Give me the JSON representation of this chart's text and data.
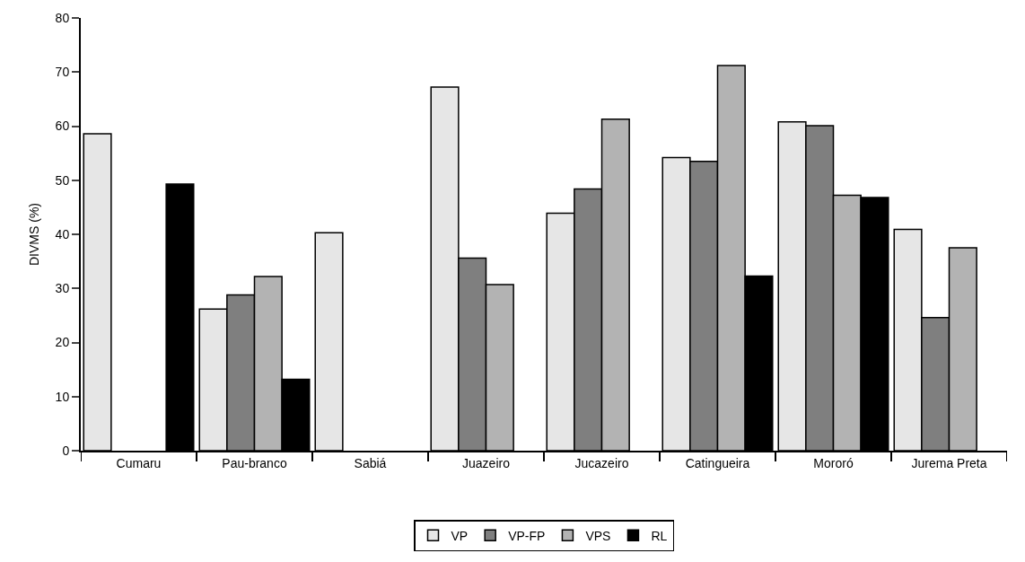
{
  "chart_data": {
    "type": "bar",
    "ylabel": "DIVMS (%)",
    "categories": [
      "Cumaru",
      "Pau-branco",
      "Sabiá",
      "Juazeiro",
      "Jucazeiro",
      "Catingueira",
      "Mororó",
      "Jurema Preta"
    ],
    "series": [
      {
        "name": "VP",
        "color": "#e6e6e6",
        "values": [
          58.6,
          26.2,
          40.3,
          67.2,
          43.9,
          54.2,
          60.8,
          40.9
        ]
      },
      {
        "name": "VP-FP",
        "color": "#7f7f7f",
        "values": [
          null,
          28.8,
          null,
          35.6,
          48.4,
          53.5,
          60.1,
          24.6
        ]
      },
      {
        "name": "VPS",
        "color": "#b3b3b3",
        "values": [
          null,
          32.2,
          null,
          30.7,
          61.3,
          71.2,
          47.2,
          37.5
        ]
      },
      {
        "name": "RL",
        "color": "#000000",
        "values": [
          49.3,
          13.2,
          null,
          null,
          null,
          32.3,
          46.8,
          null
        ]
      }
    ],
    "ylim": [
      0,
      80
    ],
    "yticks": [
      0,
      10,
      20,
      30,
      40,
      50,
      60,
      70,
      80
    ],
    "legend": "bottom"
  }
}
